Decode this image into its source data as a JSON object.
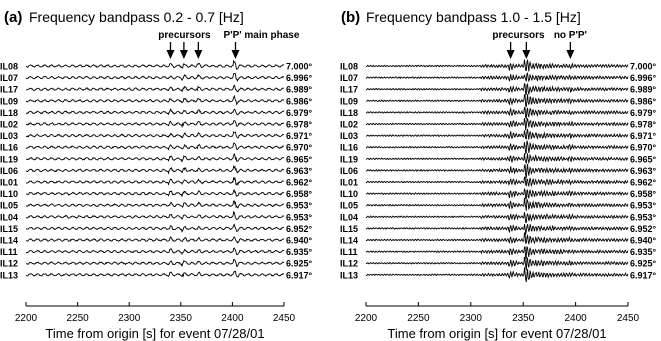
{
  "chart_data": [
    {
      "type": "line",
      "panel_label": "(a)",
      "title": "Frequency bandpass 0.2 - 0.7 [Hz]",
      "xlabel": "Time from origin [s] for event 07/28/01",
      "xlim": [
        2200,
        2450
      ],
      "xticks": [
        2200,
        2250,
        2300,
        2350,
        2400,
        2450
      ],
      "stations": [
        "IL08",
        "IL07",
        "IL17",
        "IL09",
        "IL18",
        "IL02",
        "IL03",
        "IL16",
        "IL19",
        "IL06",
        "IL01",
        "IL10",
        "IL05",
        "IL04",
        "IL15",
        "IL14",
        "IL11",
        "IL12",
        "IL13"
      ],
      "distances": [
        "7.000°",
        "6.996°",
        "6.989°",
        "6.986°",
        "6.979°",
        "6.978°",
        "6.971°",
        "6.970°",
        "6.965°",
        "6.963°",
        "6.962°",
        "6.958°",
        "6.953°",
        "6.953°",
        "6.952°",
        "6.940°",
        "6.935°",
        "6.925°",
        "6.917°"
      ],
      "annotations": [
        {
          "text": "precursors",
          "arrows_at": [
            2340,
            2353,
            2367
          ]
        },
        {
          "text": "P'P' main phase",
          "arrows_at": [
            2403
          ]
        }
      ],
      "phase_onsets": [
        2340,
        2353,
        2367,
        2403
      ],
      "grid": false
    },
    {
      "type": "line",
      "panel_label": "(b)",
      "title": "Frequency bandpass 1.0 - 1.5 [Hz]",
      "xlabel": "Time from origin [s] for event 07/28/01",
      "xlim": [
        2200,
        2450
      ],
      "xticks": [
        2200,
        2250,
        2300,
        2350,
        2400,
        2450
      ],
      "stations": [
        "IL08",
        "IL07",
        "IL17",
        "IL09",
        "IL18",
        "IL02",
        "IL03",
        "IL16",
        "IL19",
        "IL06",
        "IL01",
        "IL10",
        "IL05",
        "IL04",
        "IL15",
        "IL14",
        "IL11",
        "IL12",
        "IL13"
      ],
      "distances": [
        "7.000°",
        "6.996°",
        "6.989°",
        "6.986°",
        "6.979°",
        "6.978°",
        "6.971°",
        "6.970°",
        "6.965°",
        "6.963°",
        "6.962°",
        "6.958°",
        "6.953°",
        "6.953°",
        "6.952°",
        "6.940°",
        "6.935°",
        "6.925°",
        "6.917°"
      ],
      "annotations": [
        {
          "text": "precursors",
          "arrows_at": [
            2338,
            2353
          ]
        },
        {
          "text": "no P'P'",
          "arrows_at": [
            2395
          ]
        }
      ],
      "phase_onsets": [
        2338,
        2353,
        2395
      ],
      "grid": false
    }
  ]
}
